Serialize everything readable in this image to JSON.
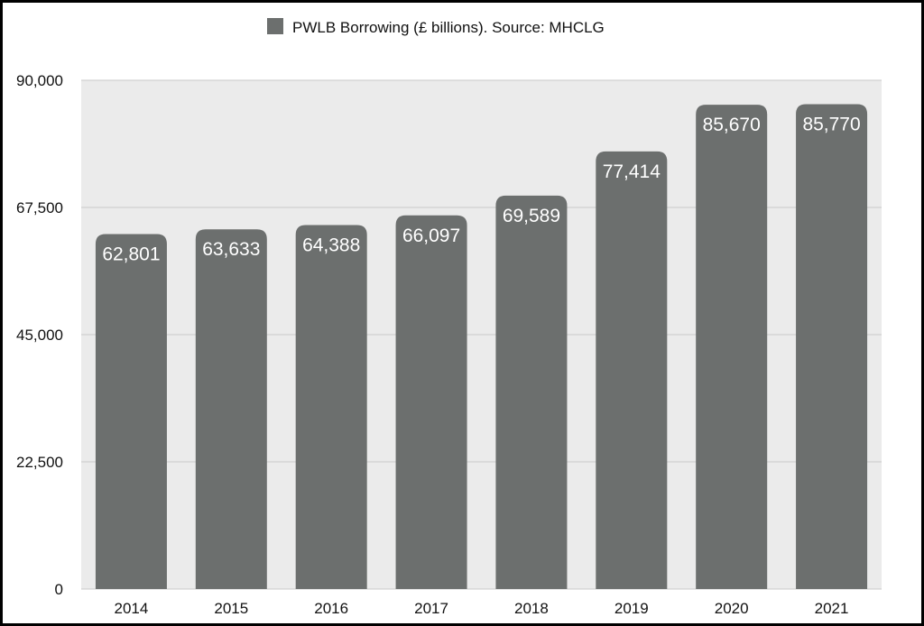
{
  "chart_data": {
    "type": "bar",
    "legend": {
      "label": "PWLB Borrowing (£ billions). Source: MHCLG",
      "position": "top-center"
    },
    "categories": [
      "2014",
      "2015",
      "2016",
      "2017",
      "2018",
      "2019",
      "2020",
      "2021"
    ],
    "series": [
      {
        "name": "PWLB Borrowing (£ billions). Source: MHCLG",
        "values": [
          62801,
          63633,
          64388,
          66097,
          69589,
          77414,
          85670,
          85770
        ],
        "value_labels": [
          "62,801",
          "63,633",
          "64,388",
          "66,097",
          "69,589",
          "77,414",
          "85,670",
          "85,770"
        ]
      }
    ],
    "ylim": [
      0,
      90000
    ],
    "yticks": [
      0,
      22500,
      45000,
      67500,
      90000
    ],
    "ytick_labels": [
      "0",
      "22,500",
      "45,000",
      "67,500",
      "90,000"
    ],
    "grid": true,
    "colors": {
      "bar": "#6c6f6e",
      "plot_background": "#ebebeb",
      "gridline": "#c8c8c8",
      "frame_border": "#000000"
    }
  }
}
